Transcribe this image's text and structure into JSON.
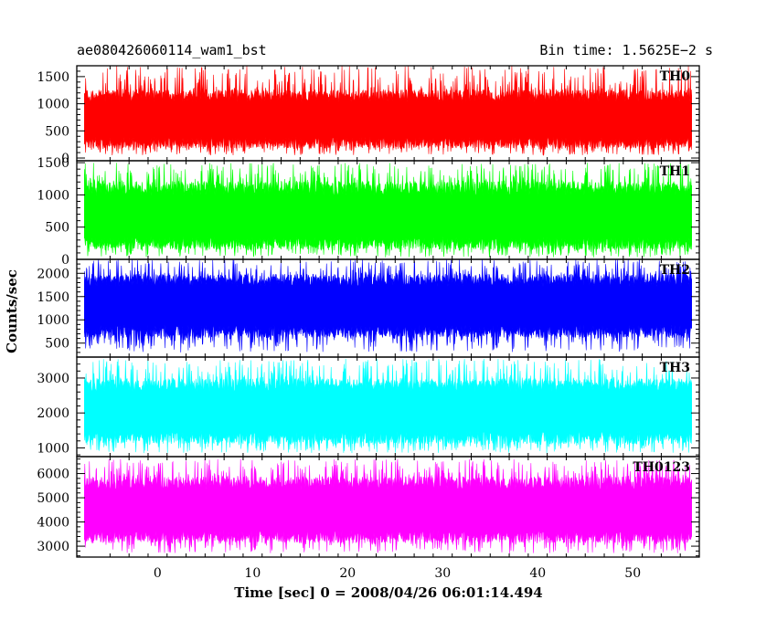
{
  "header": {
    "left_title": "ae080426060114_wam1_bst",
    "right_title": "Bin time: 1.5625E−2 s"
  },
  "chart_data": {
    "type": "line",
    "xlabel": "Time [sec] 0 = 2008/04/26 06:01:14.494",
    "ylabel": "Counts/sec",
    "xlim": [
      -8.5,
      57
    ],
    "x_ticks": [
      0,
      10,
      20,
      30,
      40,
      50
    ],
    "x_tick_labels": [
      "0",
      "10",
      "20",
      "30",
      "40",
      "50"
    ],
    "x_data_range": [
      -7.7,
      56.2
    ],
    "bin_time": 0.015625,
    "panels": [
      {
        "name": "TH0",
        "color": "#ff0000",
        "ylim": [
          -50,
          1700
        ],
        "y_ticks": [
          0,
          500,
          1000,
          1500
        ],
        "y_tick_labels": [
          "0",
          "500",
          "1000",
          "1500"
        ],
        "mean": 700,
        "band_low": 280,
        "band_high": 1150,
        "min": 50,
        "max": 1700
      },
      {
        "name": "TH1",
        "color": "#00ff00",
        "ylim": [
          0,
          1530
        ],
        "y_ticks": [
          0,
          500,
          1000,
          1500
        ],
        "y_tick_labels": [
          "0",
          "500",
          "1000",
          "1500"
        ],
        "mean": 650,
        "band_low": 250,
        "band_high": 1100,
        "min": 30,
        "max": 1500
      },
      {
        "name": "TH2",
        "color": "#0000ff",
        "ylim": [
          200,
          2300
        ],
        "y_ticks": [
          500,
          1000,
          1500,
          2000
        ],
        "y_tick_labels": [
          "500",
          "1000",
          "1500",
          "2000"
        ],
        "mean": 1300,
        "band_low": 750,
        "band_high": 1850,
        "min": 300,
        "max": 2300
      },
      {
        "name": "TH3",
        "color": "#00ffff",
        "ylim": [
          750,
          3600
        ],
        "y_ticks": [
          1000,
          2000,
          3000
        ],
        "y_tick_labels": [
          "1000",
          "2000",
          "3000"
        ],
        "mean": 2050,
        "band_low": 1300,
        "band_high": 2800,
        "min": 850,
        "max": 3550
      },
      {
        "name": "TH0123",
        "color": "#ff00ff",
        "ylim": [
          2550,
          6700
        ],
        "y_ticks": [
          3000,
          4000,
          5000,
          6000
        ],
        "y_tick_labels": [
          "3000",
          "4000",
          "5000",
          "6000"
        ],
        "mean": 4500,
        "band_low": 3400,
        "band_high": 5600,
        "min": 2700,
        "max": 6600
      }
    ]
  }
}
